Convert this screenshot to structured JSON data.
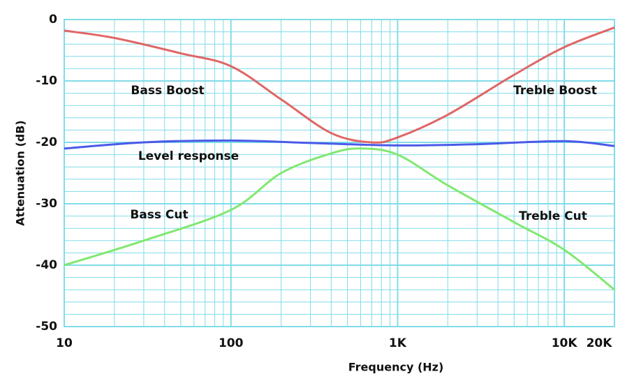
{
  "chart_data": {
    "type": "line",
    "x_label": "Frequency (Hz)",
    "y_label": "Attenuation (dB)",
    "log_x": true,
    "grid": true,
    "xlim": [
      10,
      20000
    ],
    "ylim": [
      -50,
      0
    ],
    "xticks": [
      10,
      100,
      {
        "value": 1000,
        "label": "1K"
      },
      {
        "value": 10000,
        "label": "10K"
      },
      {
        "value": 20000,
        "label": "20K"
      }
    ],
    "yticks": [
      -50,
      -40,
      -30,
      -20,
      -10,
      0
    ],
    "xminor": [
      20,
      30,
      40,
      50,
      60,
      70,
      80,
      90,
      200,
      300,
      400,
      500,
      600,
      700,
      800,
      900,
      2000,
      3000,
      4000,
      5000,
      6000,
      7000,
      8000,
      9000
    ],
    "yminor": [
      -2,
      -4,
      -6,
      -8,
      -12,
      -14,
      -16,
      -18,
      -22,
      -24,
      -26,
      -28,
      -32,
      -34,
      -36,
      -38,
      -42,
      -44,
      -46,
      -48
    ],
    "grid_color": "#80dce8",
    "annotations": [
      "Bass Boost",
      "Treble Boost",
      "Level response",
      "Bass Cut",
      "Treble Cut"
    ],
    "series": [
      {
        "color": "#e06666",
        "x": [
          10,
          20,
          50,
          100,
          200,
          400,
          700,
          1000,
          2000,
          5000,
          10000,
          20000
        ],
        "values": [
          -1.8,
          -3,
          -5.5,
          -7.6,
          -13,
          -18.5,
          -20,
          -19.2,
          -15.5,
          -9,
          -4.5,
          -1.3
        ]
      },
      {
        "color": "#4a5ae8",
        "x": [
          10,
          30,
          100,
          300,
          1000,
          3000,
          10000,
          20000
        ],
        "values": [
          -21,
          -20,
          -19.7,
          -20.1,
          -20.5,
          -20.3,
          -19.8,
          -20.6
        ]
      },
      {
        "color": "#80e870",
        "x": [
          10,
          30,
          100,
          200,
          400,
          600,
          1000,
          2000,
          5000,
          10000,
          20000
        ],
        "values": [
          -40,
          -36,
          -31,
          -25,
          -21.8,
          -21,
          -22,
          -27,
          -33,
          -37.5,
          -44
        ]
      }
    ]
  }
}
